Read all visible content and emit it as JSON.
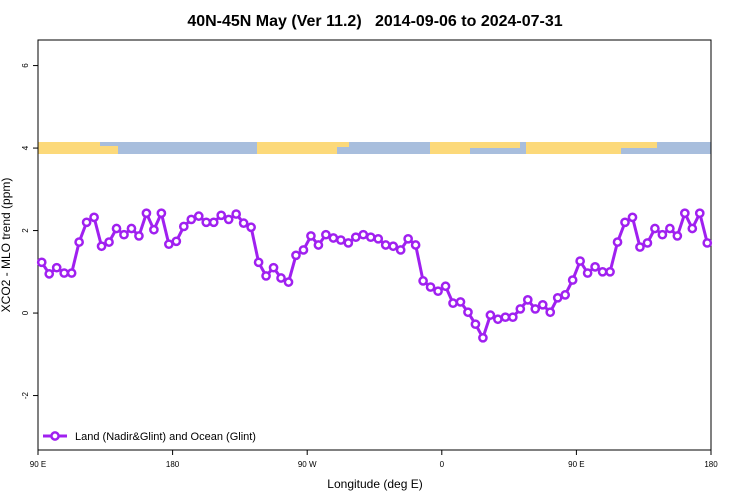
{
  "chart_data": {
    "type": "line",
    "title": "40N-45N May (Ver 11.2)   2014-09-06 to 2024-07-31",
    "xlabel": "Longitude (deg E)",
    "ylabel": "XCO2 - MLO trend (ppm)",
    "xlim": [
      90,
      540
    ],
    "ylim": [
      -3.32,
      6.62
    ],
    "xticks": [
      {
        "value": 90,
        "label": "90 E"
      },
      180,
      {
        "value": 270,
        "label": "90 W"
      },
      {
        "value": 360,
        "label": "0"
      },
      {
        "value": 450,
        "label": "90 E"
      },
      {
        "value": 540,
        "label": "180"
      }
    ],
    "yticks": [
      -2,
      0,
      2,
      4,
      6
    ],
    "legend": "bottom-left",
    "x": [
      92.5,
      97.5,
      102.5,
      107.5,
      112.5,
      117.5,
      122.5,
      127.5,
      132.5,
      137.5,
      142.5,
      147.5,
      152.5,
      157.5,
      162.5,
      167.5,
      172.5,
      177.5,
      182.5,
      187.5,
      192.5,
      197.5,
      202.5,
      207.5,
      212.5,
      217.5,
      222.5,
      227.5,
      232.5,
      237.5,
      242.5,
      247.5,
      252.5,
      257.5,
      262.5,
      267.5,
      272.5,
      277.5,
      282.5,
      287.5,
      292.5,
      297.5,
      302.5,
      307.5,
      312.5,
      317.5,
      322.5,
      327.5,
      332.5,
      337.5,
      342.5,
      347.5,
      352.5,
      357.5,
      362.5,
      367.5,
      372.5,
      377.5,
      382.5,
      387.5,
      392.5,
      397.5,
      402.5,
      407.5,
      412.5,
      417.5,
      422.5,
      427.5,
      432.5,
      437.5,
      442.5,
      447.5,
      452.5,
      457.5,
      462.5,
      467.5,
      472.5,
      477.5,
      482.5,
      487.5,
      492.5,
      497.5,
      502.5,
      507.5,
      512.5,
      517.5,
      522.5,
      527.5,
      532.5,
      537.5
    ],
    "series": [
      {
        "name": "Land (Nadir&Glint) and Ocean (Glint)",
        "color": "#a020f0",
        "values": [
          1.23,
          0.95,
          1.1,
          0.97,
          0.97,
          1.72,
          2.2,
          2.32,
          1.62,
          1.72,
          2.05,
          1.9,
          2.05,
          1.87,
          2.42,
          2.02,
          2.42,
          1.67,
          1.74,
          2.1,
          2.27,
          2.35,
          2.2,
          2.2,
          2.37,
          2.27,
          2.4,
          2.18,
          2.08,
          1.23,
          0.9,
          1.1,
          0.85,
          0.75,
          1.4,
          1.53,
          1.87,
          1.65,
          1.9,
          1.82,
          1.77,
          1.7,
          1.84,
          1.9,
          1.84,
          1.8,
          1.65,
          1.62,
          1.53,
          1.8,
          1.65,
          0.78,
          0.63,
          0.53,
          0.65,
          0.24,
          0.27,
          0.02,
          -0.27,
          -0.6,
          -0.05,
          -0.15,
          -0.1,
          -0.1,
          0.1,
          0.32,
          0.1,
          0.2,
          0.02,
          0.37,
          0.44,
          0.8,
          1.26,
          0.97,
          1.12,
          1.0,
          1.0,
          1.72,
          2.2,
          2.32,
          1.6,
          1.7,
          2.05,
          1.9,
          2.05,
          1.87,
          2.42,
          2.05,
          2.42,
          1.7
        ]
      }
    ]
  }
}
